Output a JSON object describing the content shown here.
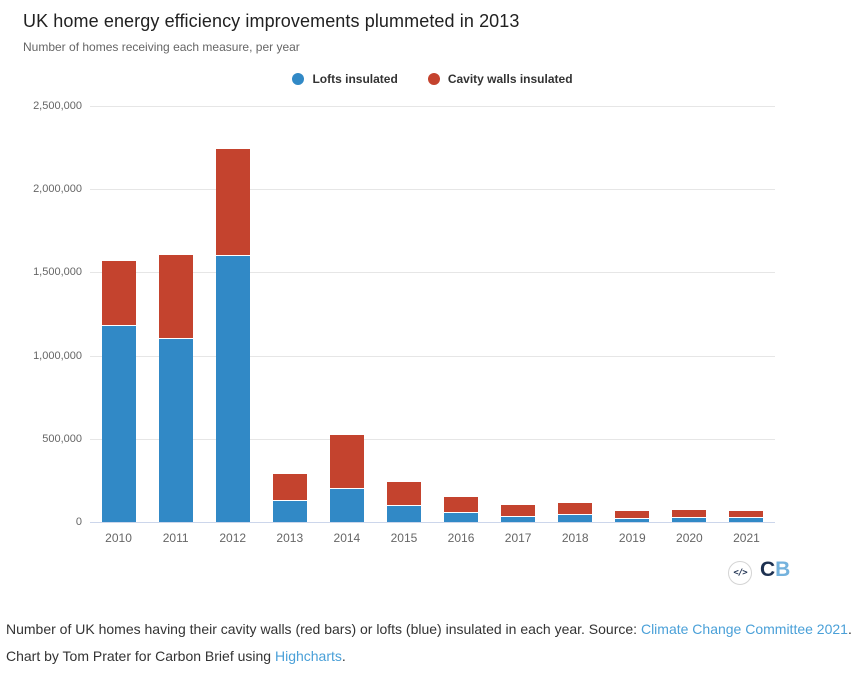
{
  "header": {
    "title": "UK home energy efficiency improvements plummeted in 2013",
    "subtitle": "Number of homes receiving each measure, per year"
  },
  "legend": [
    {
      "label": "Lofts insulated",
      "color": "#3189c6"
    },
    {
      "label": "Cavity walls insulated",
      "color": "#c4432e"
    }
  ],
  "chart_data": {
    "type": "bar",
    "stacked": true,
    "title": "UK home energy efficiency improvements plummeted in 2013",
    "subtitle": "Number of homes receiving each measure, per year",
    "categories": [
      "2010",
      "2011",
      "2012",
      "2013",
      "2014",
      "2015",
      "2016",
      "2017",
      "2018",
      "2019",
      "2020",
      "2021"
    ],
    "series": [
      {
        "name": "Lofts insulated",
        "color": "#3189c6",
        "values": [
          1180000,
          1100000,
          1600000,
          125000,
          200000,
          98000,
          55000,
          30000,
          40000,
          20000,
          25000,
          22000
        ]
      },
      {
        "name": "Cavity walls insulated",
        "color": "#c4432e",
        "values": [
          390000,
          505000,
          640000,
          165000,
          320000,
          142000,
          95000,
          70000,
          75000,
          45000,
          47000,
          46000
        ]
      }
    ],
    "xlabel": "",
    "ylabel": "",
    "ylim": [
      0,
      2500000
    ],
    "ytick_interval": 500000,
    "ytick_labels": [
      "0",
      "500,000",
      "1,000,000",
      "1,500,000",
      "2,000,000",
      "2,500,000"
    ],
    "grid": true,
    "legend_position": "top-center",
    "gridline_color": "#e6e6e6",
    "axis_line_color": "#ccd6eb",
    "label_color": "#666666"
  },
  "branding": {
    "embed_icon": "</>",
    "logo_c": "C",
    "logo_b": "B",
    "logo_c_color": "#1d3050",
    "logo_b_color": "#74b2dd"
  },
  "footer": {
    "text_before_source": "Number of UK homes having their cavity walls (red bars) or lofts (blue) insulated in each year. Source: ",
    "source_link": "Climate Change Committee 2021",
    "text_middle": ". Chart by Tom Prater for Carbon Brief using ",
    "highcharts_link": "Highcharts",
    "text_end": ".",
    "link_color": "#4aa0d8"
  }
}
